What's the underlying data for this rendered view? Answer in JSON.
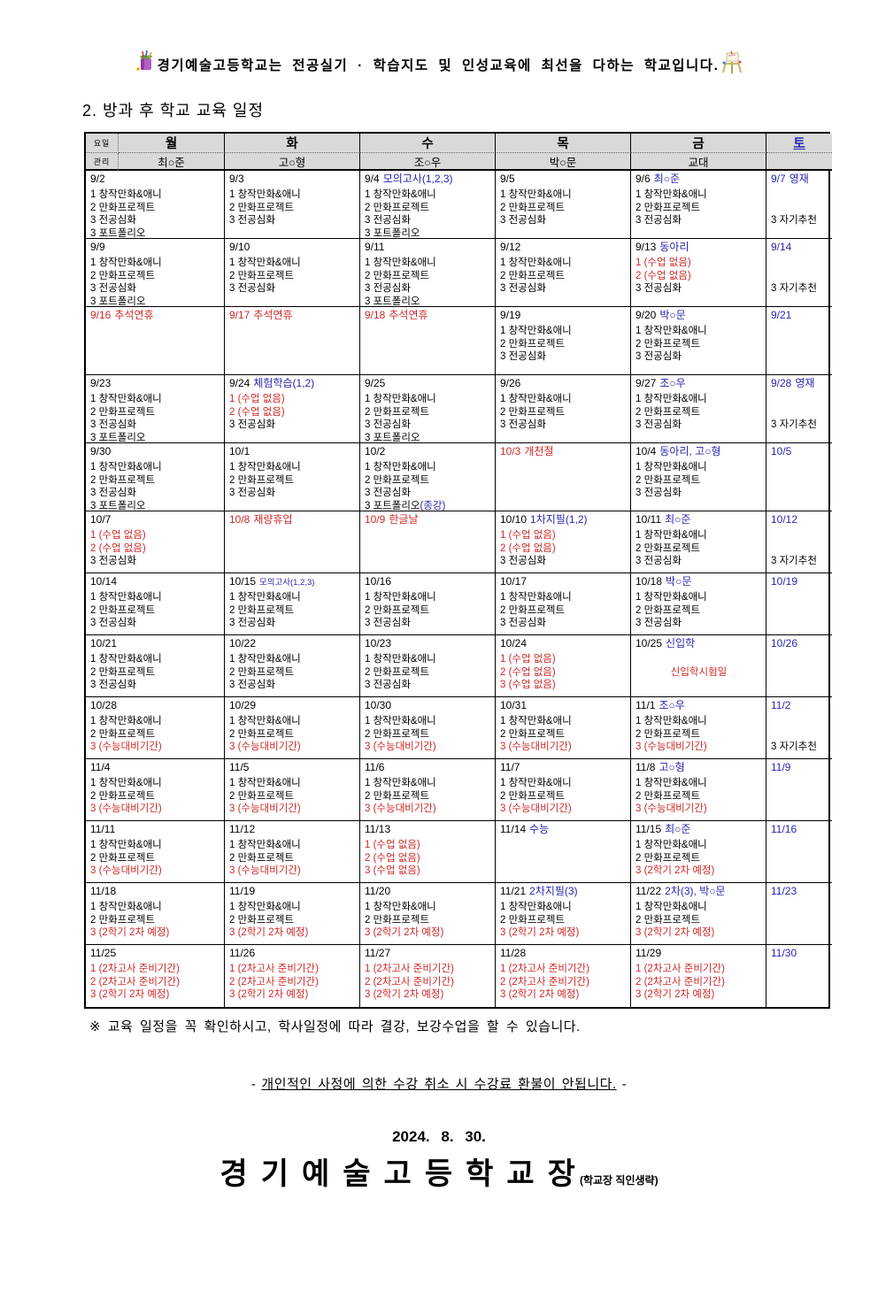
{
  "colors": {
    "red": "#cf2828",
    "blue": "#2626b0",
    "header_bg": "#d9d9d9"
  },
  "slogan": "경기예술고등학교는 전공실기 · 학습지도 및 인성교육에 최선을 다하는 학교입니다.",
  "title": "2. 방과 후 학교 교육 일정",
  "table": {
    "corner_day": "요일",
    "corner_manager": "관리",
    "days": [
      "월",
      "화",
      "수",
      "목",
      "금",
      "토"
    ],
    "managers": [
      "최○준",
      "고○형",
      "조○우",
      "박○문",
      "교대",
      ""
    ],
    "weeks": [
      [
        {
          "d": "9/2",
          "dc": "k",
          "lines": [
            "1 창작만화&애니",
            "2 만화프로젝트",
            "3 전공심화",
            "3 포트폴리오"
          ]
        },
        {
          "d": "9/3",
          "dc": "k",
          "lines": [
            "1 창작만화&애니",
            "2 만화프로젝트",
            "3 전공심화"
          ]
        },
        {
          "d": "9/4",
          "dc": "k",
          "n": "모의고사(1,2,3)",
          "nc": "b",
          "lines": [
            "1 창작만화&애니",
            "2 만화프로젝트",
            "3 전공심화",
            "3 포트폴리오"
          ]
        },
        {
          "d": "9/5",
          "dc": "k",
          "lines": [
            "1 창작만화&애니",
            "2 만화프로젝트",
            "3 전공심화"
          ]
        },
        {
          "d": "9/6",
          "dc": "k",
          "n": "최○준",
          "nc": "b",
          "lines": [
            "1 창작만화&애니",
            "2 만화프로젝트",
            "3 전공심화"
          ]
        },
        {
          "d": "9/7",
          "dc": "b",
          "n": "영재",
          "nc": "b",
          "lines": [
            "",
            "",
            "3 자기추천"
          ]
        }
      ],
      [
        {
          "d": "9/9",
          "dc": "k",
          "lines": [
            "1 창작만화&애니",
            "2 만화프로젝트",
            "3 전공심화",
            "3 포트폴리오"
          ]
        },
        {
          "d": "9/10",
          "dc": "k",
          "lines": [
            "1 창작만화&애니",
            "2 만화프로젝트",
            "3 전공심화"
          ]
        },
        {
          "d": "9/11",
          "dc": "k",
          "lines": [
            "1 창작만화&애니",
            "2 만화프로젝트",
            "3 전공심화",
            "3 포트폴리오"
          ]
        },
        {
          "d": "9/12",
          "dc": "k",
          "lines": [
            "1 창작만화&애니",
            "2 만화프로젝트",
            "3 전공심화"
          ]
        },
        {
          "d": "9/13",
          "dc": "k",
          "n": "동아리",
          "nc": "b",
          "lines": [
            {
              "t": "1 (수업 없음)",
              "c": "r"
            },
            {
              "t": "2 (수업 없음)",
              "c": "r"
            },
            "3 전공심화"
          ]
        },
        {
          "d": "9/14",
          "dc": "b",
          "lines": [
            "",
            "",
            "3 자기추천"
          ]
        }
      ],
      [
        {
          "d": "9/16",
          "dc": "r",
          "n": "추석연휴",
          "nc": "r",
          "lines": []
        },
        {
          "d": "9/17",
          "dc": "r",
          "n": "추석연휴",
          "nc": "r",
          "lines": []
        },
        {
          "d": "9/18",
          "dc": "r",
          "n": "추석연휴",
          "nc": "r",
          "lines": []
        },
        {
          "d": "9/19",
          "dc": "k",
          "lines": [
            "1 창작만화&애니",
            "2 만화프로젝트",
            "3 전공심화"
          ]
        },
        {
          "d": "9/20",
          "dc": "k",
          "n": "박○문",
          "nc": "b",
          "lines": [
            "1 창작만화&애니",
            "2 만화프로젝트",
            "3 전공심화"
          ]
        },
        {
          "d": "9/21",
          "dc": "b",
          "lines": []
        }
      ],
      [
        {
          "d": "9/23",
          "dc": "k",
          "lines": [
            "1 창작만화&애니",
            "2 만화프로젝트",
            "3 전공심화",
            "3 포트폴리오"
          ]
        },
        {
          "d": "9/24",
          "dc": "k",
          "n": "체험학습(1,2)",
          "nc": "b",
          "lines": [
            {
              "t": "1 (수업 없음)",
              "c": "r"
            },
            {
              "t": "2 (수업 없음)",
              "c": "r"
            },
            "3 전공심화"
          ]
        },
        {
          "d": "9/25",
          "dc": "k",
          "lines": [
            "1 창작만화&애니",
            "2 만화프로젝트",
            "3 전공심화",
            "3 포트폴리오"
          ]
        },
        {
          "d": "9/26",
          "dc": "k",
          "lines": [
            "1 창작만화&애니",
            "2 만화프로젝트",
            "3 전공심화"
          ]
        },
        {
          "d": "9/27",
          "dc": "k",
          "n": "조○우",
          "nc": "b",
          "lines": [
            "1 창작만화&애니",
            "2 만화프로젝트",
            "3 전공심화"
          ]
        },
        {
          "d": "9/28",
          "dc": "b",
          "n": "영재",
          "nc": "b",
          "lines": [
            "",
            "",
            "3 자기추천"
          ]
        }
      ],
      [
        {
          "d": "9/30",
          "dc": "k",
          "lines": [
            "1 창작만화&애니",
            "2 만화프로젝트",
            "3 전공심화",
            "3 포트폴리오"
          ]
        },
        {
          "d": "10/1",
          "dc": "k",
          "lines": [
            "1 창작만화&애니",
            "2 만화프로젝트",
            "3 전공심화"
          ]
        },
        {
          "d": "10/2",
          "dc": "k",
          "lines": [
            "1 창작만화&애니",
            "2 만화프로젝트",
            "3 전공심화",
            {
              "t": "3 포트폴리오",
              "c": "k",
              "t2": "(종강)",
              "c2": "b"
            }
          ]
        },
        {
          "d": "10/3",
          "dc": "r",
          "n": "개천절",
          "nc": "r",
          "lines": []
        },
        {
          "d": "10/4",
          "dc": "k",
          "n": "동아리, 고○형",
          "nc": "b",
          "lines": [
            "1 창작만화&애니",
            "2 만화프로젝트",
            "3 전공심화"
          ]
        },
        {
          "d": "10/5",
          "dc": "b",
          "lines": []
        }
      ],
      [
        {
          "d": "10/7",
          "dc": "k",
          "lines": [
            {
              "t": "1 (수업 없음)",
              "c": "r"
            },
            {
              "t": "2 (수업 없음)",
              "c": "r"
            },
            "3 전공심화"
          ]
        },
        {
          "d": "10/8",
          "dc": "r",
          "n": "재량휴업",
          "nc": "r",
          "lines": []
        },
        {
          "d": "10/9",
          "dc": "r",
          "n": "한글날",
          "nc": "r",
          "lines": []
        },
        {
          "d": "10/10",
          "dc": "k",
          "n": "1차지필(1,2)",
          "nc": "b",
          "lines": [
            {
              "t": "1 (수업 없음)",
              "c": "r"
            },
            {
              "t": "2 (수업 없음)",
              "c": "r"
            },
            "3 전공심화"
          ]
        },
        {
          "d": "10/11",
          "dc": "k",
          "n": "최○준",
          "nc": "b",
          "lines": [
            "1 창작만화&애니",
            "2 만화프로젝트",
            "3 전공심화"
          ]
        },
        {
          "d": "10/12",
          "dc": "b",
          "lines": [
            "",
            "",
            "3 자기추천"
          ]
        }
      ],
      [
        {
          "d": "10/14",
          "dc": "k",
          "lines": [
            "1 창작만화&애니",
            "2 만화프로젝트",
            "3 전공심화"
          ]
        },
        {
          "d": "10/15",
          "dc": "k",
          "n": "모의고사(1,2,3)",
          "nc": "b",
          "ns": true,
          "lines": [
            "1 창작만화&애니",
            "2 만화프로젝트",
            "3 전공심화"
          ]
        },
        {
          "d": "10/16",
          "dc": "k",
          "lines": [
            "1 창작만화&애니",
            "2 만화프로젝트",
            "3 전공심화"
          ]
        },
        {
          "d": "10/17",
          "dc": "k",
          "lines": [
            "1 창작만화&애니",
            "2 만화프로젝트",
            "3 전공심화"
          ]
        },
        {
          "d": "10/18",
          "dc": "k",
          "n": "박○문",
          "nc": "b",
          "lines": [
            "1 창작만화&애니",
            "2 만화프로젝트",
            "3 전공심화"
          ]
        },
        {
          "d": "10/19",
          "dc": "b",
          "lines": []
        }
      ],
      [
        {
          "d": "10/21",
          "dc": "k",
          "lines": [
            "1 창작만화&애니",
            "2 만화프로젝트",
            "3 전공심화"
          ]
        },
        {
          "d": "10/22",
          "dc": "k",
          "lines": [
            "1 창작만화&애니",
            "2 만화프로젝트",
            "3 전공심화"
          ]
        },
        {
          "d": "10/23",
          "dc": "k",
          "lines": [
            "1 창작만화&애니",
            "2 만화프로젝트",
            "3 전공심화"
          ]
        },
        {
          "d": "10/24",
          "dc": "k",
          "lines": [
            {
              "t": "1 (수업 없음)",
              "c": "r"
            },
            {
              "t": "2 (수업 없음)",
              "c": "r"
            },
            {
              "t": "3 (수업 없음)",
              "c": "r"
            }
          ]
        },
        {
          "d": "10/25",
          "dc": "k",
          "n": "신입학",
          "nc": "b",
          "lines": [
            "",
            {
              "t": "신입학시험일",
              "c": "r",
              "center": true
            }
          ]
        },
        {
          "d": "10/26",
          "dc": "b",
          "lines": []
        }
      ],
      [
        {
          "d": "10/28",
          "dc": "k",
          "lines": [
            "1 창작만화&애니",
            "2 만화프로젝트",
            {
              "t": "3 (수능대비기간)",
              "c": "r"
            }
          ]
        },
        {
          "d": "10/29",
          "dc": "k",
          "lines": [
            "1 창작만화&애니",
            "2 만화프로젝트",
            {
              "t": "3 (수능대비기간)",
              "c": "r"
            }
          ]
        },
        {
          "d": "10/30",
          "dc": "k",
          "lines": [
            "1 창작만화&애니",
            "2 만화프로젝트",
            {
              "t": "3 (수능대비기간)",
              "c": "r"
            }
          ]
        },
        {
          "d": "10/31",
          "dc": "k",
          "lines": [
            "1 창작만화&애니",
            "2 만화프로젝트",
            {
              "t": "3 (수능대비기간)",
              "c": "r"
            }
          ]
        },
        {
          "d": "11/1",
          "dc": "k",
          "n": "조○우",
          "nc": "b",
          "lines": [
            "1 창작만화&애니",
            "2 만화프로젝트",
            {
              "t": "3 (수능대비기간)",
              "c": "r"
            }
          ]
        },
        {
          "d": "11/2",
          "dc": "b",
          "lines": [
            "",
            "",
            "3 자기추천"
          ]
        }
      ],
      [
        {
          "d": "11/4",
          "dc": "k",
          "lines": [
            "1 창작만화&애니",
            "2 만화프로젝트",
            {
              "t": "3 (수능대비기간)",
              "c": "r"
            }
          ]
        },
        {
          "d": "11/5",
          "dc": "k",
          "lines": [
            "1 창작만화&애니",
            "2 만화프로젝트",
            {
              "t": "3 (수능대비기간)",
              "c": "r"
            }
          ]
        },
        {
          "d": "11/6",
          "dc": "k",
          "lines": [
            "1 창작만화&애니",
            "2 만화프로젝트",
            {
              "t": "3 (수능대비기간)",
              "c": "r"
            }
          ]
        },
        {
          "d": "11/7",
          "dc": "k",
          "lines": [
            "1 창작만화&애니",
            "2 만화프로젝트",
            {
              "t": "3 (수능대비기간)",
              "c": "r"
            }
          ]
        },
        {
          "d": "11/8",
          "dc": "k",
          "n": "고○형",
          "nc": "b",
          "lines": [
            "1 창작만화&애니",
            "2 만화프로젝트",
            {
              "t": "3 (수능대비기간)",
              "c": "r"
            }
          ]
        },
        {
          "d": "11/9",
          "dc": "b",
          "lines": []
        }
      ],
      [
        {
          "d": "11/11",
          "dc": "k",
          "lines": [
            "1 창작만화&애니",
            "2 만화프로젝트",
            {
              "t": "3 (수능대비기간)",
              "c": "r"
            }
          ]
        },
        {
          "d": "11/12",
          "dc": "k",
          "lines": [
            "1 창작만화&애니",
            "2 만화프로젝트",
            {
              "t": "3 (수능대비기간)",
              "c": "r"
            }
          ]
        },
        {
          "d": "11/13",
          "dc": "k",
          "lines": [
            {
              "t": "1 (수업 없음)",
              "c": "r"
            },
            {
              "t": "2 (수업 없음)",
              "c": "r"
            },
            {
              "t": "3 (수업 없음)",
              "c": "r"
            }
          ]
        },
        {
          "d": "11/14",
          "dc": "k",
          "n": "수능",
          "nc": "b",
          "lines": []
        },
        {
          "d": "11/15",
          "dc": "k",
          "n": "최○준",
          "nc": "b",
          "lines": [
            "1 창작만화&애니",
            "2 만화프로젝트",
            {
              "t": "3 (2학기 2차 예정)",
              "c": "r"
            }
          ]
        },
        {
          "d": "11/16",
          "dc": "b",
          "lines": []
        }
      ],
      [
        {
          "d": "11/18",
          "dc": "k",
          "lines": [
            "1 창작만화&애니",
            "2 만화프로젝트",
            {
              "t": "3 (2학기 2차 예정)",
              "c": "r"
            }
          ]
        },
        {
          "d": "11/19",
          "dc": "k",
          "lines": [
            "1 창작만화&애니",
            "2 만화프로젝트",
            {
              "t": "3 (2학기 2차 예정)",
              "c": "r"
            }
          ]
        },
        {
          "d": "11/20",
          "dc": "k",
          "lines": [
            "1 창작만화&애니",
            "2 만화프로젝트",
            {
              "t": "3 (2학기 2차 예정)",
              "c": "r"
            }
          ]
        },
        {
          "d": "11/21",
          "dc": "k",
          "n": "2차지필(3)",
          "nc": "b",
          "lines": [
            "1 창작만화&애니",
            "2 만화프로젝트",
            {
              "t": "3 (2학기 2차 예정)",
              "c": "r"
            }
          ]
        },
        {
          "d": "11/22",
          "dc": "k",
          "n": "2차(3), 박○문",
          "nc": "b",
          "lines": [
            "1 창작만화&애니",
            "2 만화프로젝트",
            {
              "t": "3 (2학기 2차 예정)",
              "c": "r"
            }
          ]
        },
        {
          "d": "11/23",
          "dc": "b",
          "lines": []
        }
      ],
      [
        {
          "d": "11/25",
          "dc": "k",
          "lines": [
            {
              "t": "1 (2차고사 준비기간)",
              "c": "r"
            },
            {
              "t": "2 (2차고사 준비기간)",
              "c": "r"
            },
            {
              "t": "3 (2학기 2차 예정)",
              "c": "r"
            }
          ]
        },
        {
          "d": "11/26",
          "dc": "k",
          "lines": [
            {
              "t": "1 (2차고사 준비기간)",
              "c": "r"
            },
            {
              "t": "2 (2차고사 준비기간)",
              "c": "r"
            },
            {
              "t": "3 (2학기 2차 예정)",
              "c": "r"
            }
          ]
        },
        {
          "d": "11/27",
          "dc": "k",
          "lines": [
            {
              "t": "1 (2차고사 준비기간)",
              "c": "r"
            },
            {
              "t": "2 (2차고사 준비기간)",
              "c": "r"
            },
            {
              "t": "3 (2학기 2차 예정)",
              "c": "r"
            }
          ]
        },
        {
          "d": "11/28",
          "dc": "k",
          "lines": [
            {
              "t": "1 (2차고사 준비기간)",
              "c": "r"
            },
            {
              "t": "2 (2차고사 준비기간)",
              "c": "r"
            },
            {
              "t": "3 (2학기 2차 예정)",
              "c": "r"
            }
          ]
        },
        {
          "d": "11/29",
          "dc": "k",
          "lines": [
            {
              "t": "1 (2차고사 준비기간)",
              "c": "r"
            },
            {
              "t": "2 (2차고사 준비기간)",
              "c": "r"
            },
            {
              "t": "3 (2학기 2차 예정)",
              "c": "r"
            }
          ]
        },
        {
          "d": "11/30",
          "dc": "b",
          "lines": []
        }
      ]
    ]
  },
  "footnote": "※ 교육 일정을 꼭 확인하시고, 학사일정에 따라 결강, 보강수업을 할 수 있습니다.",
  "refund": {
    "dash": "-",
    "text": "개인적인 사정에 의한 수강 취소 시 수강료 환불이 안됩니다."
  },
  "doc_date": "2024. 8. 30.",
  "principal": {
    "title": "경기예술고등학교장",
    "stamp_note": "(학교장 직인생략)"
  }
}
